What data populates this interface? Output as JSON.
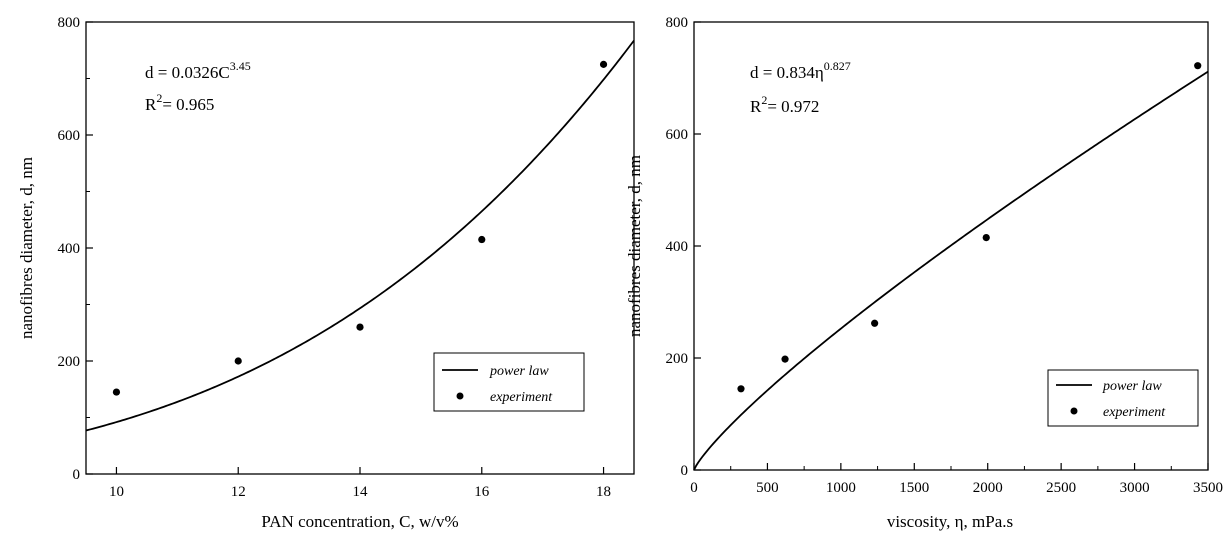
{
  "chart_data": [
    {
      "type": "scatter",
      "xlabel": "PAN concentration, C, w/v%",
      "ylabel": "nanofibres diameter, d, nm",
      "xlim": [
        9.5,
        18.5
      ],
      "ylim": [
        0,
        800
      ],
      "xticks": [
        "10",
        "12",
        "14",
        "16",
        "18"
      ],
      "yticks": [
        "0",
        "200",
        "400",
        "600",
        "800"
      ],
      "equation": {
        "prefix": "d = 0.0326C",
        "exponent": "3.45"
      },
      "r_squared": {
        "prefix": "R",
        "exponent": "2",
        "suffix": "= 0.965"
      },
      "fit": {
        "kind": "power",
        "coefficient": 0.0326,
        "exponent": 3.45
      },
      "series": [
        {
          "name": "power law",
          "kind": "line",
          "color": "#000000"
        },
        {
          "name": "experiment",
          "kind": "scatter",
          "color": "#000000",
          "points": [
            [
              10,
              145
            ],
            [
              12,
              200
            ],
            [
              14,
              260
            ],
            [
              16,
              415
            ],
            [
              18,
              725
            ]
          ]
        }
      ],
      "legend_position": "bottom-right",
      "grid": false
    },
    {
      "type": "scatter",
      "xlabel": "viscosity, η, mPa.s",
      "ylabel": "nanofibres diameter, d, nm",
      "xlim": [
        0,
        3500
      ],
      "ylim": [
        0,
        800
      ],
      "xticks": [
        "0",
        "500",
        "1000",
        "1500",
        "2000",
        "2500",
        "3000",
        "3500"
      ],
      "yticks": [
        "0",
        "200",
        "400",
        "600",
        "800"
      ],
      "equation": {
        "prefix": "d = 0.834η",
        "exponent": "0.827"
      },
      "r_squared": {
        "prefix": "R",
        "exponent": "2",
        "suffix": "= 0.972"
      },
      "fit": {
        "kind": "power",
        "coefficient": 0.834,
        "exponent": 0.827
      },
      "series": [
        {
          "name": "power law",
          "kind": "line",
          "color": "#000000"
        },
        {
          "name": "experiment",
          "kind": "scatter",
          "color": "#000000",
          "points": [
            [
              320,
              145
            ],
            [
              620,
              198
            ],
            [
              1230,
              262
            ],
            [
              1990,
              415
            ],
            [
              3430,
              722
            ]
          ]
        }
      ],
      "legend_position": "bottom-right",
      "grid": false
    }
  ]
}
